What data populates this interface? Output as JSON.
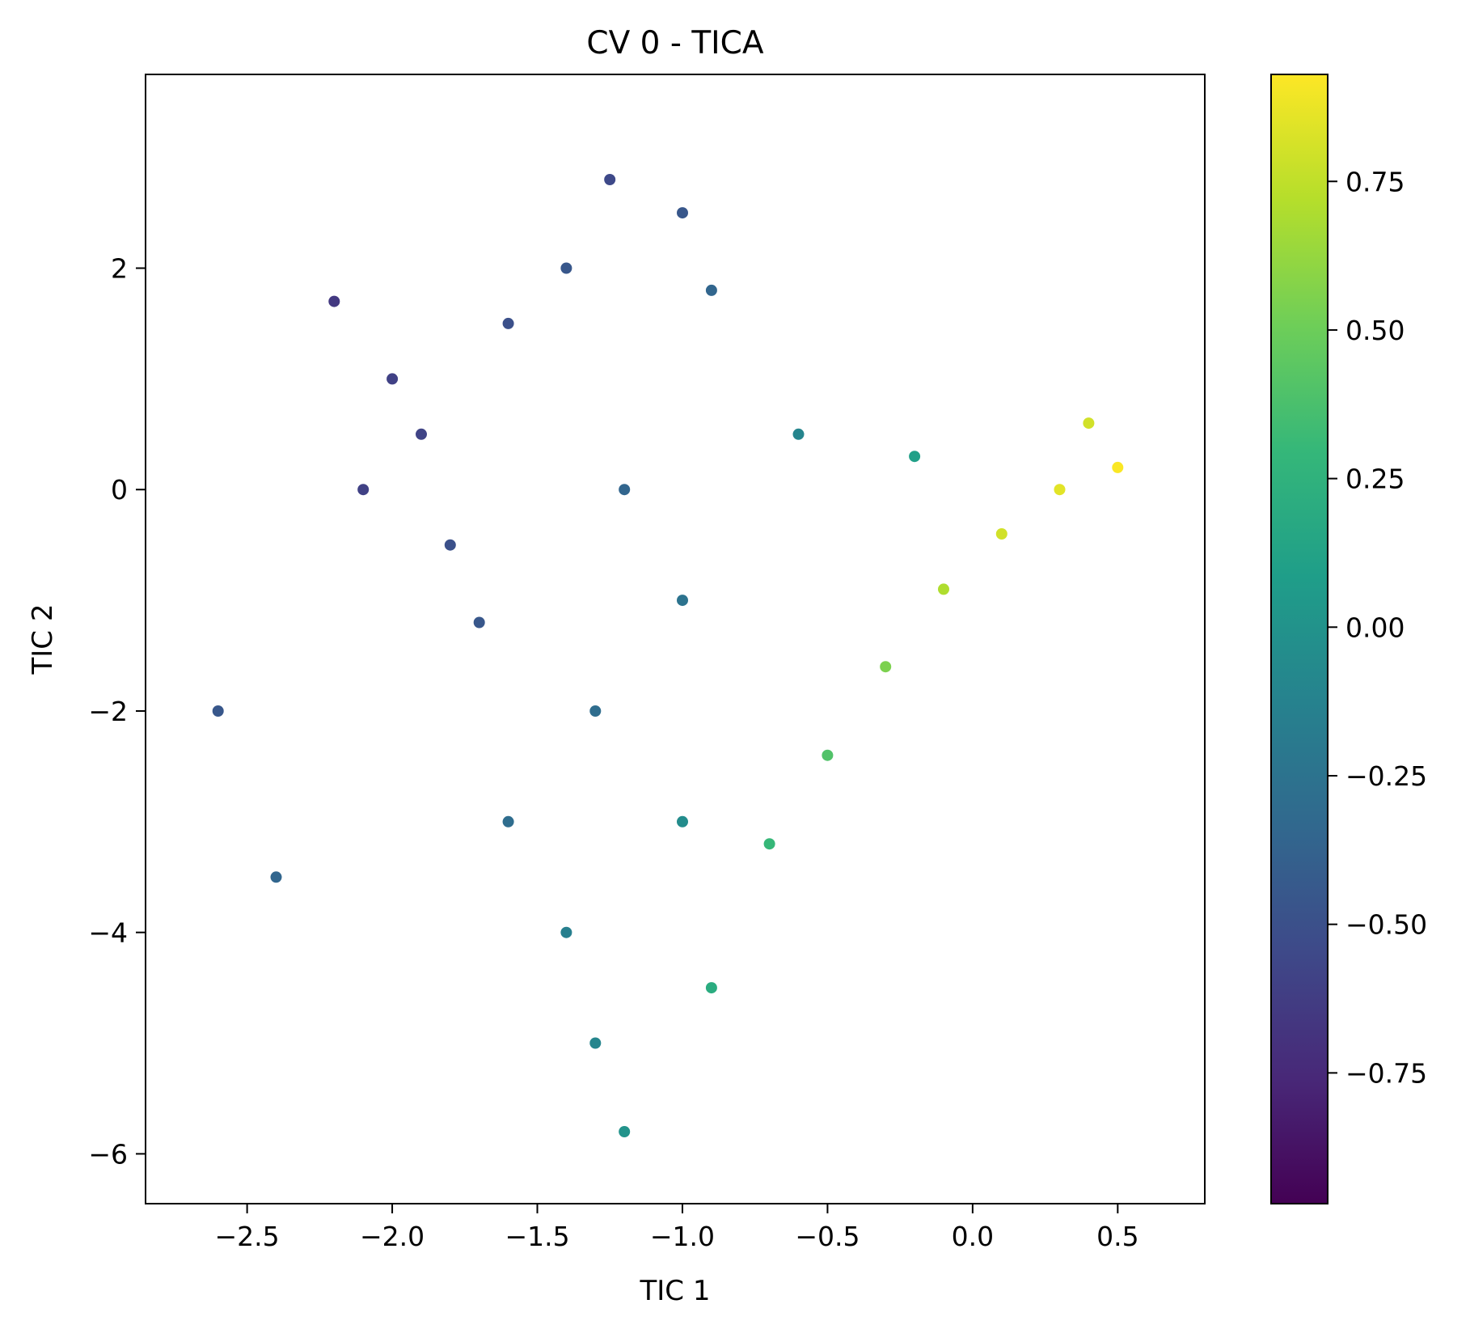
{
  "chart_data": {
    "type": "scatter",
    "title": "CV 0 - TICA",
    "xlabel": "TIC 1",
    "ylabel": "TIC 2",
    "xlim": [
      -2.85,
      0.8
    ],
    "ylim": [
      -6.45,
      3.75
    ],
    "x_ticks": [
      -2.5,
      -2.0,
      -1.5,
      -1.0,
      -0.5,
      0.0,
      0.5
    ],
    "x_tick_labels": [
      "−2.5",
      "−2.0",
      "−1.5",
      "−1.0",
      "−0.5",
      "0.0",
      "0.5"
    ],
    "y_ticks": [
      2,
      0,
      -2,
      -4,
      -6
    ],
    "y_tick_labels": [
      "2",
      "0",
      "−2",
      "−4",
      "−6"
    ],
    "colorbar": {
      "colormap": "viridis",
      "range": [
        -0.97,
        0.93
      ],
      "ticks": [
        0.75,
        0.5,
        0.25,
        0.0,
        -0.25,
        -0.5,
        -0.75
      ],
      "tick_labels": [
        "0.75",
        "0.50",
        "0.25",
        "0.00",
        "−0.25",
        "−0.50",
        "−0.75"
      ],
      "stops": [
        "#440154",
        "#482878",
        "#3e4989",
        "#31688e",
        "#26828e",
        "#1f9e89",
        "#35b779",
        "#6ece58",
        "#b5de2b",
        "#fde725"
      ]
    },
    "point_cloud": {
      "description_points": "approximate sampled points: [TIC 1, TIC 2, CV 0 value]",
      "points": [
        [
          -2.0,
          1.0,
          -0.6
        ],
        [
          -1.9,
          0.5,
          -0.58
        ],
        [
          -2.1,
          0.0,
          -0.6
        ],
        [
          -1.8,
          -0.5,
          -0.5
        ],
        [
          -1.7,
          -1.2,
          -0.45
        ],
        [
          -1.6,
          1.5,
          -0.5
        ],
        [
          -1.4,
          2.0,
          -0.45
        ],
        [
          -1.25,
          2.8,
          -0.55
        ],
        [
          -1.0,
          2.5,
          -0.45
        ],
        [
          -0.9,
          1.8,
          -0.35
        ],
        [
          -1.2,
          0.0,
          -0.35
        ],
        [
          -1.0,
          -1.0,
          -0.25
        ],
        [
          -1.3,
          -2.0,
          -0.3
        ],
        [
          -1.6,
          -3.0,
          -0.3
        ],
        [
          -1.4,
          -4.0,
          -0.15
        ],
        [
          -1.3,
          -5.0,
          -0.1
        ],
        [
          -1.2,
          -5.8,
          0.0
        ],
        [
          -0.9,
          -4.5,
          0.2
        ],
        [
          -0.7,
          -3.2,
          0.3
        ],
        [
          -0.5,
          -2.4,
          0.4
        ],
        [
          -0.3,
          -1.6,
          0.55
        ],
        [
          -0.1,
          -0.9,
          0.7
        ],
        [
          0.1,
          -0.4,
          0.8
        ],
        [
          0.3,
          0.0,
          0.85
        ],
        [
          0.5,
          0.2,
          0.92
        ],
        [
          0.4,
          0.6,
          0.8
        ],
        [
          -0.2,
          0.3,
          0.1
        ],
        [
          -0.6,
          0.5,
          -0.1
        ],
        [
          -2.6,
          -2.0,
          -0.45
        ],
        [
          -2.4,
          -3.5,
          -0.35
        ],
        [
          -2.2,
          1.7,
          -0.65
        ],
        [
          -1.0,
          -3.0,
          -0.05
        ]
      ]
    }
  }
}
